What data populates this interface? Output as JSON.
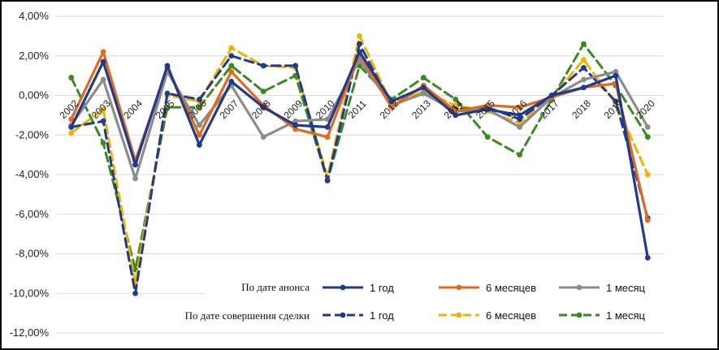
{
  "chart_data": {
    "type": "line",
    "title": "",
    "xlabel": "",
    "ylabel": "",
    "ylim": [
      -12,
      4
    ],
    "ytick_step": 2,
    "ytick_labels": [
      "4,00%",
      "2,00%",
      "0,00%",
      "-2,00%",
      "-4,00%",
      "-6,00%",
      "-8,00%",
      "-10,00%",
      "-12,00%"
    ],
    "categories": [
      "2002",
      "2003",
      "2004",
      "2005",
      "2006",
      "2007",
      "2008",
      "2009",
      "2010",
      "2011",
      "2012",
      "2013",
      "2014",
      "2015",
      "2016",
      "2017",
      "2018",
      "2019",
      "2020"
    ],
    "grid": true,
    "legend": {
      "position": "bottom-center",
      "group_announce": "По дате анонса",
      "group_deal": "По дате совершения сделки"
    },
    "series": [
      {
        "name": "1 год",
        "group": "announce",
        "color": "#1f3a8f",
        "dash": false,
        "values": [
          -1.6,
          1.7,
          -3.5,
          1.5,
          -2.5,
          0.7,
          -0.6,
          -1.5,
          -1.6,
          2.2,
          -0.3,
          0.4,
          -1.0,
          -0.7,
          -1.0,
          0.0,
          0.4,
          1.0,
          -8.2
        ]
      },
      {
        "name": "6 месяцев",
        "group": "announce",
        "color": "#e06b1f",
        "dash": false,
        "values": [
          -1.2,
          2.2,
          -3.3,
          1.4,
          -2.0,
          1.2,
          -0.5,
          -1.7,
          -2.1,
          2.1,
          -0.6,
          0.5,
          -0.8,
          -0.5,
          -0.6,
          -0.1,
          0.4,
          0.6,
          -6.3
        ]
      },
      {
        "name": "1 месяц",
        "group": "announce",
        "color": "#8c8c8c",
        "dash": false,
        "values": [
          -1.5,
          0.8,
          -4.2,
          1.2,
          -1.5,
          0.5,
          -2.1,
          -1.3,
          -1.2,
          1.8,
          -0.5,
          0.1,
          -0.8,
          -0.7,
          -1.6,
          -0.1,
          0.8,
          1.2,
          -1.6
        ]
      },
      {
        "name": "1 год",
        "group": "deal",
        "color": "#1f3a8f",
        "dash": true,
        "values": [
          -1.6,
          -1.3,
          -10.0,
          0.1,
          -0.2,
          2.0,
          1.5,
          1.5,
          -4.3,
          2.6,
          -0.5,
          0.1,
          -0.7,
          -0.6,
          -1.2,
          0.0,
          1.4,
          -0.3,
          -6.2
        ]
      },
      {
        "name": "6 месяцев",
        "group": "deal",
        "color": "#f2b300",
        "dash": true,
        "values": [
          -1.9,
          -0.7,
          -9.5,
          0.0,
          -0.3,
          2.4,
          1.5,
          1.4,
          -4.1,
          3.0,
          -0.4,
          0.2,
          -0.5,
          -0.8,
          -1.4,
          -0.1,
          1.8,
          -0.4,
          -4.0
        ]
      },
      {
        "name": "1 месяц",
        "group": "deal",
        "color": "#3a8a1f",
        "dash": true,
        "values": [
          0.9,
          -2.4,
          -8.8,
          -0.6,
          -0.6,
          1.5,
          0.2,
          1.0,
          -4.3,
          1.5,
          -0.2,
          0.9,
          -0.2,
          -2.1,
          -3.0,
          -0.2,
          2.6,
          0.5,
          -2.1
        ]
      }
    ]
  }
}
